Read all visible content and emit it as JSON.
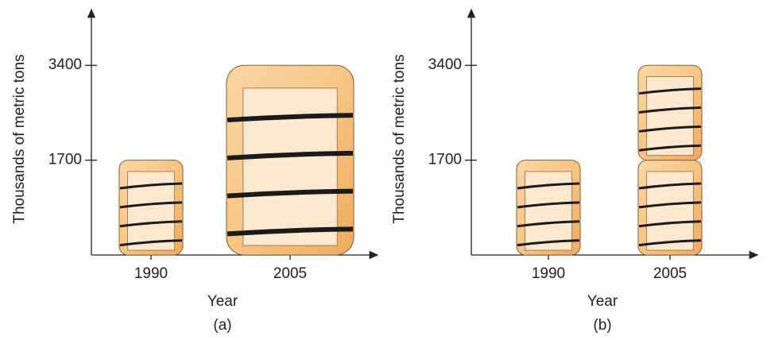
{
  "chart_data": [
    {
      "type": "pictograph",
      "stacked": false,
      "caption": "(a)",
      "y_label": "Thousands of metric tons",
      "x_label": "Year",
      "categories": [
        "1990",
        "2005"
      ],
      "values": [
        1700,
        3400
      ],
      "ylim": [
        0,
        4400
      ],
      "yticks": [
        1700,
        3400
      ],
      "color": "#f3b56b"
    },
    {
      "type": "pictograph",
      "stacked": true,
      "caption": "(b)",
      "y_label": "Thousands of metric tons",
      "x_label": "Year",
      "categories": [
        "1990",
        "2005"
      ],
      "values": [
        1700,
        3400
      ],
      "ylim": [
        0,
        4400
      ],
      "yticks": [
        1700,
        3400
      ],
      "color": "#f3b56b"
    }
  ]
}
